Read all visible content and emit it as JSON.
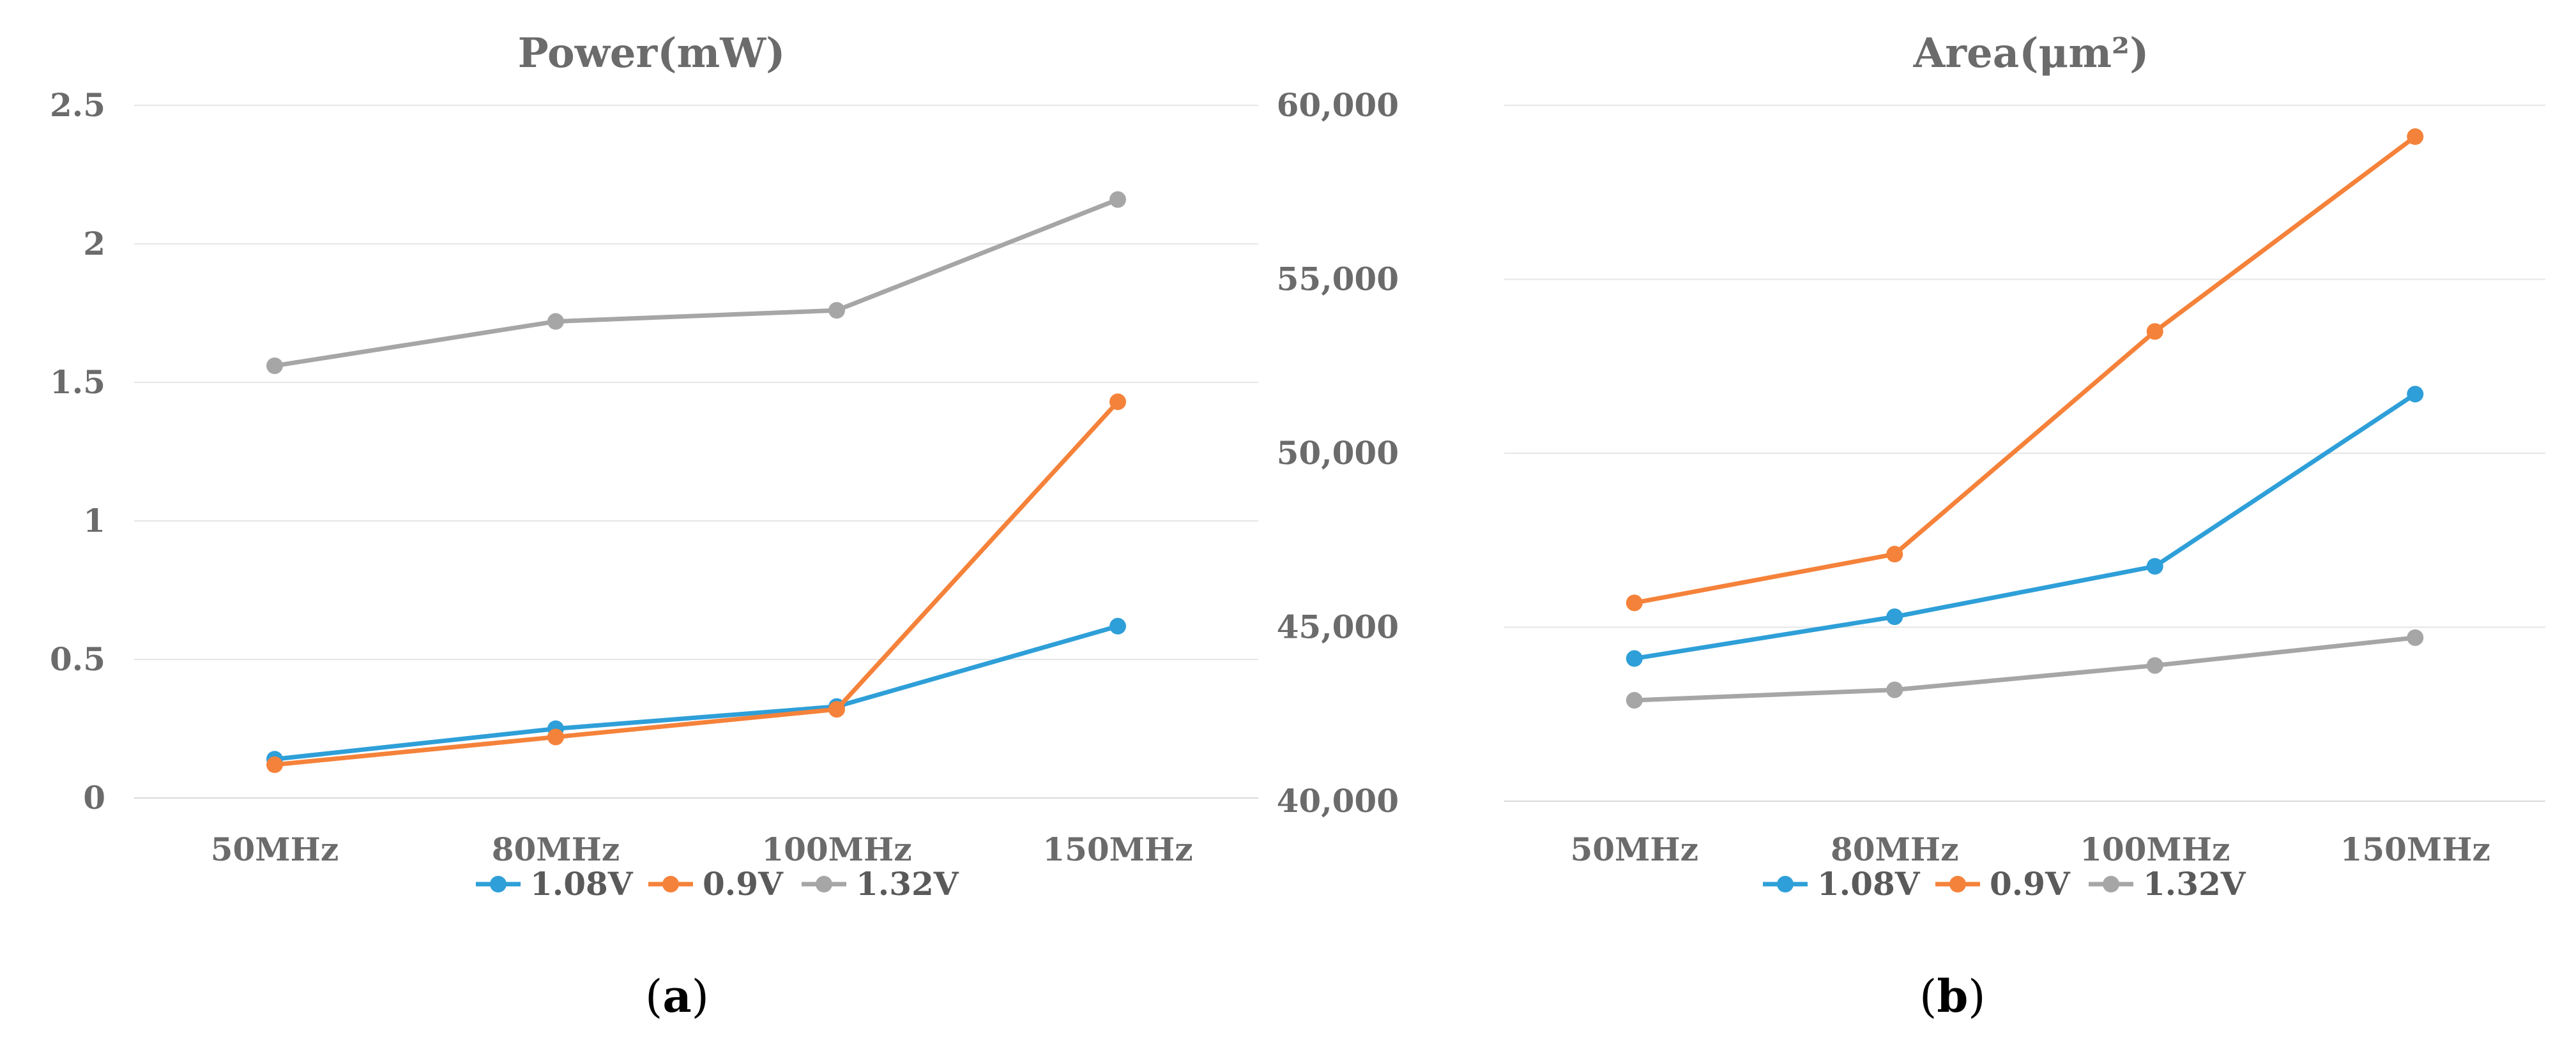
{
  "colors": {
    "series_1": "#2e9fd8",
    "series_2": "#f5823a",
    "series_3": "#a6a6a6"
  },
  "chart_data": [
    {
      "type": "line",
      "panel": "a",
      "caption": "(a)",
      "title": "Power(mW)",
      "categories": [
        "50MHz",
        "80MHz",
        "100MHz",
        "150MHz"
      ],
      "series": [
        {
          "name": "1.08V",
          "values": [
            0.14,
            0.25,
            0.33,
            0.62
          ]
        },
        {
          "name": "0.9V",
          "values": [
            0.12,
            0.22,
            0.32,
            1.43
          ]
        },
        {
          "name": "1.32V",
          "values": [
            1.56,
            1.72,
            1.76,
            2.16
          ]
        }
      ],
      "ylim": [
        0,
        2.5
      ],
      "yticks": [
        0,
        0.5,
        1,
        1.5,
        2,
        2.5
      ],
      "ytick_labels": [
        "0",
        "0.5",
        "1",
        "1.5",
        "2",
        "2.5"
      ],
      "grid": true,
      "legend": "bottom"
    },
    {
      "type": "line",
      "panel": "b",
      "caption": "(b)",
      "title": "Area(μm²)",
      "categories": [
        "50MHz",
        "80MHz",
        "100MHz",
        "150MHz"
      ],
      "series": [
        {
          "name": "1.08V",
          "values": [
            44100,
            45300,
            46750,
            51700
          ]
        },
        {
          "name": "0.9V",
          "values": [
            45700,
            47100,
            53500,
            59100
          ]
        },
        {
          "name": "1.32V",
          "values": [
            42900,
            43200,
            43900,
            44700
          ]
        }
      ],
      "ylim": [
        40000,
        60000
      ],
      "yticks": [
        40000,
        45000,
        50000,
        55000,
        60000
      ],
      "ytick_labels": [
        "40,000",
        "45,000",
        "50,000",
        "55,000",
        "60,000"
      ],
      "grid": true,
      "legend": "bottom"
    }
  ]
}
